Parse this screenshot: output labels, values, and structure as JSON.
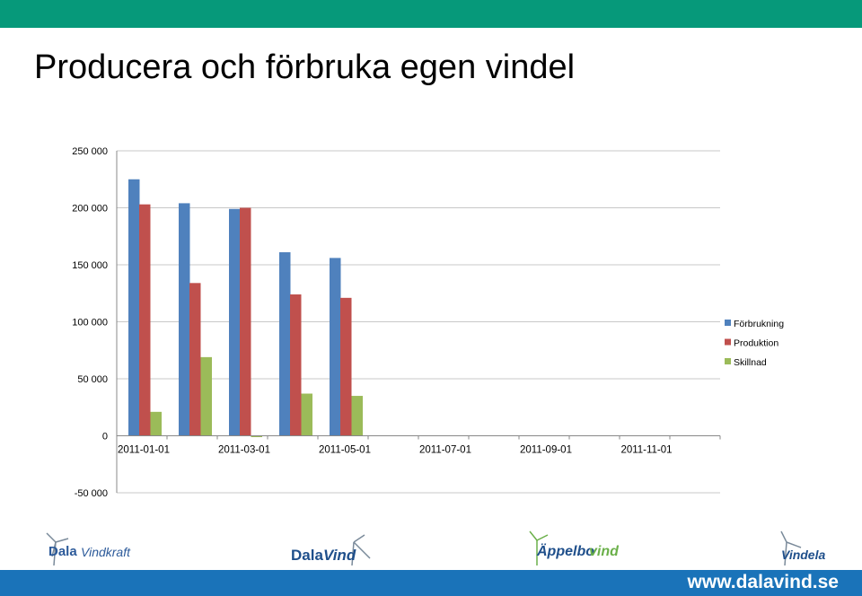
{
  "slide": {
    "title": "Producera och förbruka egen vindel"
  },
  "chart_data": {
    "type": "bar",
    "categories": [
      "2011-01-01",
      "2011-02-01",
      "2011-03-01",
      "2011-04-01",
      "2011-05-01",
      "2011-06-01",
      "2011-07-01",
      "2011-08-01",
      "2011-09-01",
      "2011-10-01",
      "2011-11-01",
      "2011-12-01"
    ],
    "x_tick_labels": [
      "2011-01-01",
      "2011-03-01",
      "2011-05-01",
      "2011-07-01",
      "2011-09-01",
      "2011-11-01"
    ],
    "series": [
      {
        "name": "Förbrukning",
        "color": "#4f81bd",
        "values": [
          225000,
          204000,
          199000,
          161000,
          156000,
          null,
          null,
          null,
          null,
          null,
          null,
          null
        ]
      },
      {
        "name": "Produktion",
        "color": "#c0504d",
        "values": [
          203000,
          134000,
          200000,
          124000,
          121000,
          null,
          null,
          null,
          null,
          null,
          null,
          null
        ]
      },
      {
        "name": "Skillnad",
        "color": "#9bbb59",
        "values": [
          21000,
          69000,
          -1000,
          37000,
          35000,
          null,
          null,
          null,
          null,
          null,
          null,
          null
        ]
      }
    ],
    "ylim": [
      -50000,
      250000
    ],
    "y_ticks": [
      -50000,
      0,
      50000,
      100000,
      150000,
      200000,
      250000
    ],
    "y_tick_labels": [
      "-50 000",
      "0",
      "50 000",
      "100 000",
      "150 000",
      "200 000",
      "250 000"
    ],
    "grid": true,
    "legend_position": "right"
  },
  "footer": {
    "url": "www.dalavind.se",
    "logos": [
      {
        "name": "Dala Vindkraft",
        "text_a": "Dala",
        "text_b": "Vindkraft"
      },
      {
        "name": "Dala Vind",
        "text_a": "Dala",
        "text_b": "Vind"
      },
      {
        "name": "Äppelbo vind",
        "text_a": "Äppelbo",
        "text_b": "vind"
      },
      {
        "name": "Vindela",
        "text_a": "Vindela"
      }
    ]
  }
}
